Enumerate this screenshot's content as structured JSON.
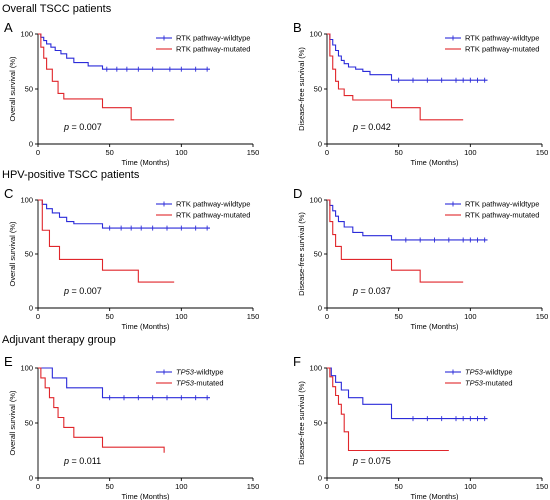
{
  "sections": [
    {
      "title": "Overall TSCC patients"
    },
    {
      "title": "HPV-positive TSCC patients"
    },
    {
      "title": "Adjuvant therapy group"
    }
  ],
  "colors": {
    "wildtype": "#2b2bd9",
    "mutated": "#e0262b"
  },
  "chart_data": [
    {
      "type": "line",
      "panel": "A",
      "xlabel": "Time (Months)",
      "ylabel": "Overall survival (%)",
      "xlim": [
        0,
        150
      ],
      "ylim": [
        0,
        100
      ],
      "xticks": [
        "0",
        "50",
        "100",
        "150"
      ],
      "yticks": [
        "0",
        "50",
        "100"
      ],
      "pvalue": {
        "prefix": "p",
        "text": " = 0.007"
      },
      "series": [
        {
          "name": "RTK pathway-wildtype",
          "prefix": "",
          "suffix": "RTK pathway-wildtype",
          "color_key": "wildtype",
          "x": [
            0,
            2,
            4,
            6,
            9,
            12,
            16,
            20,
            25,
            35,
            45,
            120
          ],
          "y": [
            100,
            97,
            94,
            91,
            88,
            85,
            82,
            78,
            74,
            71,
            68,
            68
          ],
          "censor_x": [
            48,
            55,
            62,
            70,
            80,
            92,
            100,
            110,
            118
          ]
        },
        {
          "name": "RTK pathway-mutated",
          "prefix": "",
          "suffix": "RTK pathway-mutated",
          "color_key": "mutated",
          "x": [
            0,
            2,
            4,
            6,
            10,
            14,
            18,
            45,
            65,
            95
          ],
          "y": [
            100,
            88,
            78,
            68,
            57,
            46,
            41,
            33,
            22,
            22
          ],
          "censor_x": []
        }
      ]
    },
    {
      "type": "line",
      "panel": "B",
      "xlabel": "Time (Months)",
      "ylabel": "Disease-free survival (%)",
      "xlim": [
        0,
        150
      ],
      "ylim": [
        0,
        100
      ],
      "xticks": [
        "0",
        "50",
        "100",
        "150"
      ],
      "yticks": [
        "0",
        "50",
        "100"
      ],
      "pvalue": {
        "prefix": "p",
        "text": " = 0.042"
      },
      "series": [
        {
          "name": "RTK pathway-wildtype",
          "prefix": "",
          "suffix": "RTK pathway-wildtype",
          "color_key": "wildtype",
          "x": [
            0,
            2,
            4,
            6,
            8,
            10,
            12,
            15,
            20,
            25,
            30,
            45,
            112
          ],
          "y": [
            100,
            95,
            90,
            85,
            80,
            76,
            73,
            70,
            68,
            66,
            63,
            58,
            58
          ],
          "censor_x": [
            50,
            60,
            70,
            80,
            90,
            95,
            100,
            105,
            110
          ]
        },
        {
          "name": "RTK pathway-mutated",
          "prefix": "",
          "suffix": "RTK pathway-mutated",
          "color_key": "mutated",
          "x": [
            0,
            2,
            4,
            6,
            8,
            12,
            18,
            45,
            65,
            95
          ],
          "y": [
            100,
            80,
            68,
            57,
            50,
            44,
            40,
            33,
            22,
            22
          ],
          "censor_x": []
        }
      ]
    },
    {
      "type": "line",
      "panel": "C",
      "xlabel": "Time (Months)",
      "ylabel": "Overall survival (%)",
      "xlim": [
        0,
        150
      ],
      "ylim": [
        0,
        100
      ],
      "xticks": [
        "0",
        "50",
        "100",
        "150"
      ],
      "yticks": [
        "0",
        "50",
        "100"
      ],
      "pvalue": {
        "prefix": "p",
        "text": " = 0.007"
      },
      "series": [
        {
          "name": "RTK pathway-wildtype",
          "prefix": "",
          "suffix": "RTK pathway-wildtype",
          "color_key": "wildtype",
          "x": [
            0,
            3,
            6,
            10,
            15,
            20,
            25,
            45,
            120
          ],
          "y": [
            100,
            96,
            92,
            88,
            84,
            80,
            78,
            74,
            74
          ],
          "censor_x": [
            50,
            58,
            65,
            72,
            80,
            90,
            100,
            110,
            118
          ]
        },
        {
          "name": "RTK pathway-mutated",
          "prefix": "",
          "suffix": "RTK pathway-mutated",
          "color_key": "mutated",
          "x": [
            0,
            3,
            8,
            15,
            45,
            70,
            95
          ],
          "y": [
            100,
            72,
            57,
            45,
            35,
            24,
            24
          ],
          "censor_x": []
        }
      ]
    },
    {
      "type": "line",
      "panel": "D",
      "xlabel": "Time (Months)",
      "ylabel": "Disease-free survival (%)",
      "xlim": [
        0,
        150
      ],
      "ylim": [
        0,
        100
      ],
      "xticks": [
        "0",
        "50",
        "100",
        "150"
      ],
      "yticks": [
        "0",
        "50",
        "100"
      ],
      "pvalue": {
        "prefix": "p",
        "text": " = 0.037"
      },
      "series": [
        {
          "name": "RTK pathway-wildtype",
          "prefix": "",
          "suffix": "RTK pathway-wildtype",
          "color_key": "wildtype",
          "x": [
            0,
            2,
            4,
            6,
            8,
            12,
            18,
            25,
            45,
            112
          ],
          "y": [
            100,
            95,
            90,
            85,
            80,
            75,
            70,
            67,
            63,
            63
          ],
          "censor_x": [
            55,
            65,
            75,
            85,
            95,
            100,
            105,
            110
          ]
        },
        {
          "name": "RTK pathway-mutated",
          "prefix": "",
          "suffix": "RTK pathway-mutated",
          "color_key": "mutated",
          "x": [
            0,
            2,
            4,
            6,
            10,
            45,
            65,
            95
          ],
          "y": [
            100,
            80,
            68,
            57,
            45,
            35,
            24,
            24
          ],
          "censor_x": []
        }
      ]
    },
    {
      "type": "line",
      "panel": "E",
      "xlabel": "Time (Months)",
      "ylabel": "Overall survival (%)",
      "xlim": [
        0,
        150
      ],
      "ylim": [
        0,
        100
      ],
      "xticks": [
        "0",
        "50",
        "100",
        "150"
      ],
      "yticks": [
        "0",
        "50",
        "100"
      ],
      "pvalue": {
        "prefix": "p",
        "text": " = 0.011"
      },
      "series": [
        {
          "name": "TP53-wildtype",
          "prefix": "TP53",
          "suffix": "-wildtype",
          "color_key": "wildtype",
          "x": [
            0,
            10,
            20,
            45,
            120
          ],
          "y": [
            100,
            91,
            82,
            73,
            73
          ],
          "censor_x": [
            50,
            60,
            70,
            80,
            90,
            100,
            110,
            118
          ]
        },
        {
          "name": "TP53-mutated",
          "prefix": "TP53",
          "suffix": "-mutated",
          "color_key": "mutated",
          "x": [
            0,
            2,
            5,
            8,
            11,
            14,
            18,
            25,
            45,
            88
          ],
          "y": [
            100,
            91,
            82,
            73,
            64,
            55,
            46,
            37,
            28,
            23
          ],
          "censor_x": []
        }
      ]
    },
    {
      "type": "line",
      "panel": "F",
      "xlabel": "Time (Months)",
      "ylabel": "Disease-free survival (%)",
      "xlim": [
        0,
        150
      ],
      "ylim": [
        0,
        100
      ],
      "xticks": [
        "0",
        "50",
        "100",
        "150"
      ],
      "yticks": [
        "0",
        "50",
        "100"
      ],
      "pvalue": {
        "prefix": "p",
        "text": " = 0.075"
      },
      "series": [
        {
          "name": "TP53-wildtype",
          "prefix": "TP53",
          "suffix": "-wildtype",
          "color_key": "wildtype",
          "x": [
            0,
            3,
            6,
            10,
            15,
            25,
            45,
            112
          ],
          "y": [
            100,
            93,
            87,
            80,
            73,
            67,
            54,
            54
          ],
          "censor_x": [
            60,
            70,
            80,
            90,
            95,
            100,
            105,
            110
          ]
        },
        {
          "name": "TP53-mutated",
          "prefix": "TP53",
          "suffix": "-mutated",
          "color_key": "mutated",
          "x": [
            0,
            2,
            4,
            6,
            8,
            10,
            12,
            15,
            85
          ],
          "y": [
            100,
            92,
            83,
            75,
            67,
            58,
            42,
            25,
            25
          ],
          "censor_x": []
        }
      ]
    }
  ]
}
